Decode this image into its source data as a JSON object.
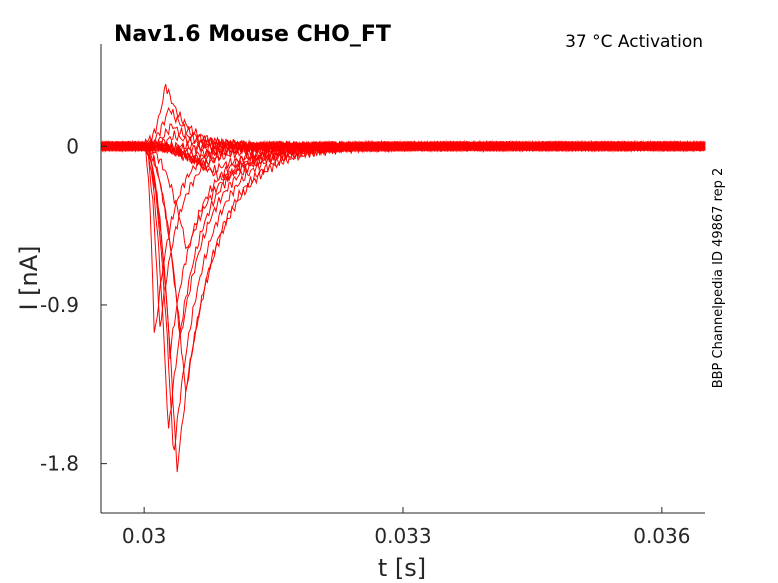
{
  "chart_data": {
    "type": "line",
    "title": "Nav1.6  Mouse  CHO_FT",
    "subtitle": "37 °C  Activation",
    "side_label": "BBP Channelpedia ID 49867 rep 2",
    "xlabel": "t [s]",
    "ylabel": "I [nA]",
    "xlim": [
      0.0295,
      0.0365
    ],
    "ylim": [
      -2.08,
      0.58
    ],
    "xticks": [
      0.03,
      0.033,
      0.036
    ],
    "xtick_labels": [
      "0.03",
      "0.033",
      "0.036"
    ],
    "yticks": [
      0,
      -0.9,
      -1.8
    ],
    "ytick_labels": [
      "0",
      "-0.9",
      "-1.8"
    ],
    "grid": false,
    "line_color": "#ff0000",
    "trace_start_t": 0.0295,
    "trace_end_t": 0.0365,
    "pulse_onset_t": 0.03,
    "series": [
      {
        "peak_t": 0.03003,
        "peak_nA": 0.05
      },
      {
        "peak_t": 0.03025,
        "peak_nA": 0.35
      },
      {
        "peak_t": 0.03029,
        "peak_nA": 0.22
      },
      {
        "peak_t": 0.03032,
        "peak_nA": 0.12
      },
      {
        "peak_t": 0.03035,
        "peak_nA": 0.06
      },
      {
        "peak_t": 0.0305,
        "peak_nA": -0.02
      },
      {
        "peak_t": 0.03058,
        "peak_nA": -0.05
      },
      {
        "peak_t": 0.03068,
        "peak_nA": -0.1
      },
      {
        "peak_t": 0.0308,
        "peak_nA": -0.14
      },
      {
        "peak_t": 0.03055,
        "peak_nA": -0.08
      },
      {
        "peak_t": 0.0309,
        "peak_nA": -0.19
      },
      {
        "peak_t": 0.03012,
        "peak_nA": -1.11
      },
      {
        "peak_t": 0.03018,
        "peak_nA": -1.05
      },
      {
        "peak_t": 0.0303,
        "peak_nA": -1.18
      },
      {
        "peak_t": 0.03042,
        "peak_nA": -1.1
      },
      {
        "peak_t": 0.03028,
        "peak_nA": -1.63
      },
      {
        "peak_t": 0.03034,
        "peak_nA": -1.77
      },
      {
        "peak_t": 0.03038,
        "peak_nA": -1.85
      },
      {
        "peak_t": 0.03048,
        "peak_nA": -1.4
      },
      {
        "peak_t": 0.0305,
        "peak_nA": -0.6
      }
    ]
  }
}
